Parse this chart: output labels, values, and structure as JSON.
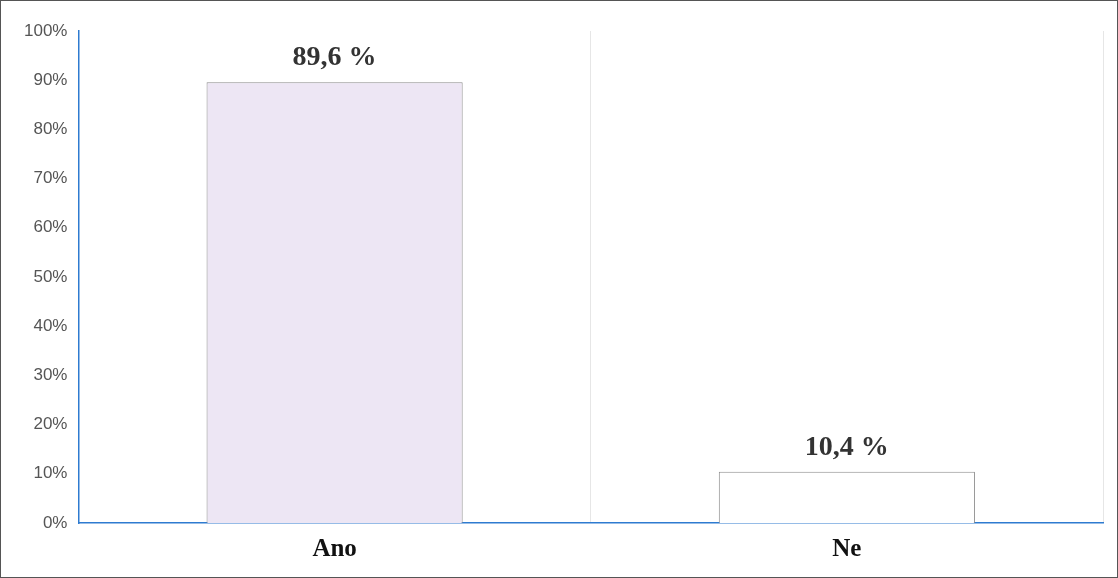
{
  "chart_data": {
    "type": "bar",
    "categories": [
      "Ano",
      "Ne"
    ],
    "values": [
      89.6,
      10.4
    ],
    "colors": [
      "#ede6f4",
      "#ffffff"
    ],
    "value_labels": [
      "89,6 %",
      "10,4 %"
    ],
    "ylim": [
      0,
      100
    ],
    "yticks": [
      {
        "value": 0,
        "label": "0%"
      },
      {
        "value": 10,
        "label": "10%"
      },
      {
        "value": 20,
        "label": "20%"
      },
      {
        "value": 30,
        "label": "30%"
      },
      {
        "value": 40,
        "label": "40%"
      },
      {
        "value": 50,
        "label": "50%"
      },
      {
        "value": 60,
        "label": "60%"
      },
      {
        "value": 70,
        "label": "70%"
      },
      {
        "value": 80,
        "label": "80%"
      },
      {
        "value": 90,
        "label": "90%"
      },
      {
        "value": 100,
        "label": "100%"
      }
    ],
    "grid": "x",
    "legend": false
  }
}
